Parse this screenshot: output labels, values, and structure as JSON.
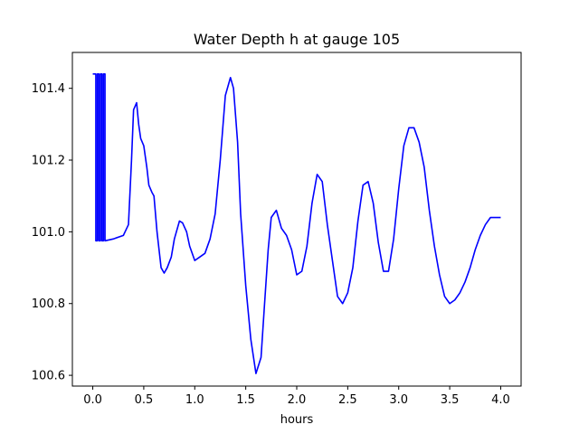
{
  "chart_data": {
    "type": "line",
    "title": "Water Depth h at gauge 105",
    "xlabel": "hours",
    "ylabel": "",
    "xlim": [
      -0.2,
      4.2
    ],
    "ylim": [
      100.57,
      101.5
    ],
    "grid": false,
    "xticks": [
      0.0,
      0.5,
      1.0,
      1.5,
      2.0,
      2.5,
      3.0,
      3.5,
      4.0
    ],
    "xtick_labels": [
      "0.0",
      "0.5",
      "1.0",
      "1.5",
      "2.0",
      "2.5",
      "3.0",
      "3.5",
      "4.0"
    ],
    "yticks": [
      100.6,
      100.8,
      101.0,
      101.2,
      101.4
    ],
    "ytick_labels": [
      "100.6",
      "100.8",
      "101.0",
      "101.2",
      "101.4"
    ],
    "series": [
      {
        "color": "#0000ff",
        "x": [
          0.0,
          0.03,
          0.03,
          0.045,
          0.045,
          0.06,
          0.06,
          0.075,
          0.075,
          0.09,
          0.09,
          0.105,
          0.105,
          0.12,
          0.12,
          0.2,
          0.3,
          0.35,
          0.38,
          0.4,
          0.43,
          0.45,
          0.47,
          0.5,
          0.53,
          0.55,
          0.58,
          0.6,
          0.63,
          0.67,
          0.7,
          0.73,
          0.77,
          0.8,
          0.85,
          0.88,
          0.92,
          0.95,
          1.0,
          1.05,
          1.1,
          1.15,
          1.2,
          1.25,
          1.3,
          1.35,
          1.38,
          1.42,
          1.45,
          1.5,
          1.55,
          1.6,
          1.65,
          1.68,
          1.72,
          1.75,
          1.8,
          1.85,
          1.9,
          1.95,
          2.0,
          2.05,
          2.1,
          2.15,
          2.2,
          2.25,
          2.3,
          2.35,
          2.4,
          2.45,
          2.5,
          2.55,
          2.6,
          2.65,
          2.7,
          2.75,
          2.8,
          2.85,
          2.9,
          2.95,
          3.0,
          3.05,
          3.1,
          3.15,
          3.2,
          3.25,
          3.3,
          3.35,
          3.4,
          3.45,
          3.5,
          3.55,
          3.6,
          3.65,
          3.7,
          3.75,
          3.8,
          3.85,
          3.9,
          3.95,
          4.0
        ],
        "y": [
          101.44,
          101.44,
          100.975,
          100.975,
          101.44,
          101.44,
          100.975,
          100.975,
          101.44,
          101.44,
          100.975,
          100.975,
          101.44,
          101.44,
          100.975,
          100.98,
          100.99,
          101.02,
          101.2,
          101.34,
          101.36,
          101.3,
          101.26,
          101.24,
          101.18,
          101.13,
          101.11,
          101.1,
          101.0,
          100.9,
          100.885,
          100.9,
          100.93,
          100.98,
          101.03,
          101.025,
          101.0,
          100.96,
          100.92,
          100.93,
          100.94,
          100.98,
          101.05,
          101.2,
          101.38,
          101.43,
          101.4,
          101.25,
          101.05,
          100.85,
          100.7,
          100.605,
          100.65,
          100.78,
          100.95,
          101.04,
          101.06,
          101.01,
          100.99,
          100.95,
          100.88,
          100.89,
          100.96,
          101.08,
          101.16,
          101.14,
          101.02,
          100.92,
          100.82,
          100.8,
          100.83,
          100.9,
          101.03,
          101.13,
          101.14,
          101.08,
          100.97,
          100.89,
          100.89,
          100.98,
          101.12,
          101.24,
          101.29,
          101.29,
          101.25,
          101.18,
          101.06,
          100.96,
          100.88,
          100.82,
          100.8,
          100.81,
          100.83,
          100.86,
          100.9,
          100.95,
          100.99,
          101.02,
          101.04,
          101.04,
          101.04
        ]
      }
    ]
  }
}
